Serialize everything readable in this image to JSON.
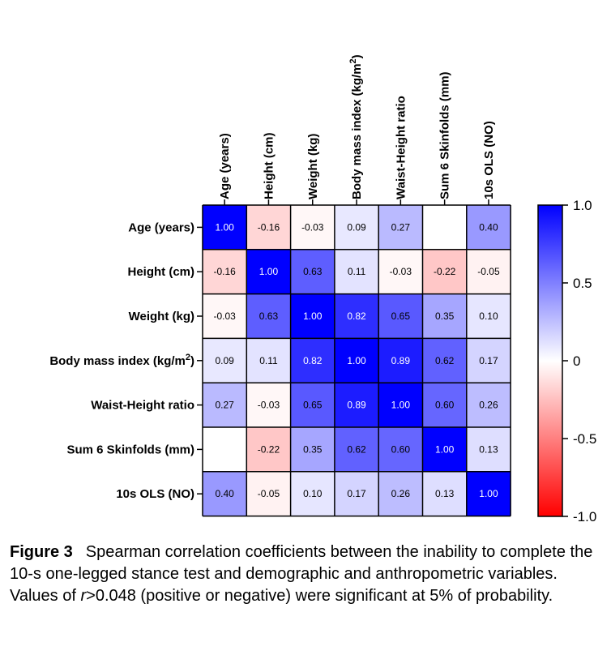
{
  "chart_data": {
    "type": "heatmap",
    "rows": [
      {
        "label": "Age (years)"
      },
      {
        "label": "Height (cm)"
      },
      {
        "label": "Weight (kg)"
      },
      {
        "label": "Body mass index (kg/m",
        "sup": "2",
        "suffix": ")"
      },
      {
        "label": "Waist-Height ratio"
      },
      {
        "label": "Sum 6 Skinfolds (mm)"
      },
      {
        "label": "10s OLS (NO)"
      }
    ],
    "columns": [
      {
        "label": "Age (years)"
      },
      {
        "label": "Height (cm)"
      },
      {
        "label": "Weight (kg)"
      },
      {
        "label": "Body mass index (kg/m",
        "sup": "2",
        "suffix": ")"
      },
      {
        "label": "Waist-Height ratio"
      },
      {
        "label": "Sum 6 Skinfolds (mm)"
      },
      {
        "label": "10s OLS (NO)"
      }
    ],
    "values": [
      [
        1.0,
        -0.16,
        -0.03,
        0.09,
        0.27,
        null,
        0.4
      ],
      [
        -0.16,
        1.0,
        0.63,
        0.11,
        -0.03,
        -0.22,
        -0.05
      ],
      [
        -0.03,
        0.63,
        1.0,
        0.82,
        0.65,
        0.35,
        0.1
      ],
      [
        0.09,
        0.11,
        0.82,
        1.0,
        0.89,
        0.62,
        0.17
      ],
      [
        0.27,
        -0.03,
        0.65,
        0.89,
        1.0,
        0.6,
        0.26
      ],
      [
        null,
        -0.22,
        0.35,
        0.62,
        0.6,
        1.0,
        0.13
      ],
      [
        0.4,
        -0.05,
        0.1,
        0.17,
        0.26,
        0.13,
        1.0
      ]
    ],
    "color_scale": {
      "min": -1.0,
      "max": 1.0,
      "min_color": "#ff0000",
      "mid_color": "#ffffff",
      "max_color": "#0000ff",
      "tick_labels": [
        "1.0",
        "0.5",
        "0",
        "-0.5",
        "-1.0"
      ],
      "tick_values": [
        1.0,
        0.5,
        0,
        -0.5,
        -1.0
      ]
    },
    "legend_position": "right"
  },
  "caption": {
    "figure_label": "Figure 3",
    "text_before_r": "Spearman correlation coefficients between the inability to complete the 10-s one-legged stance test and demographic and anthropometric variables. Values of ",
    "r_symbol": "r",
    "text_after_r": ">0.048 (positive or negative) were significant at 5% of probability."
  }
}
